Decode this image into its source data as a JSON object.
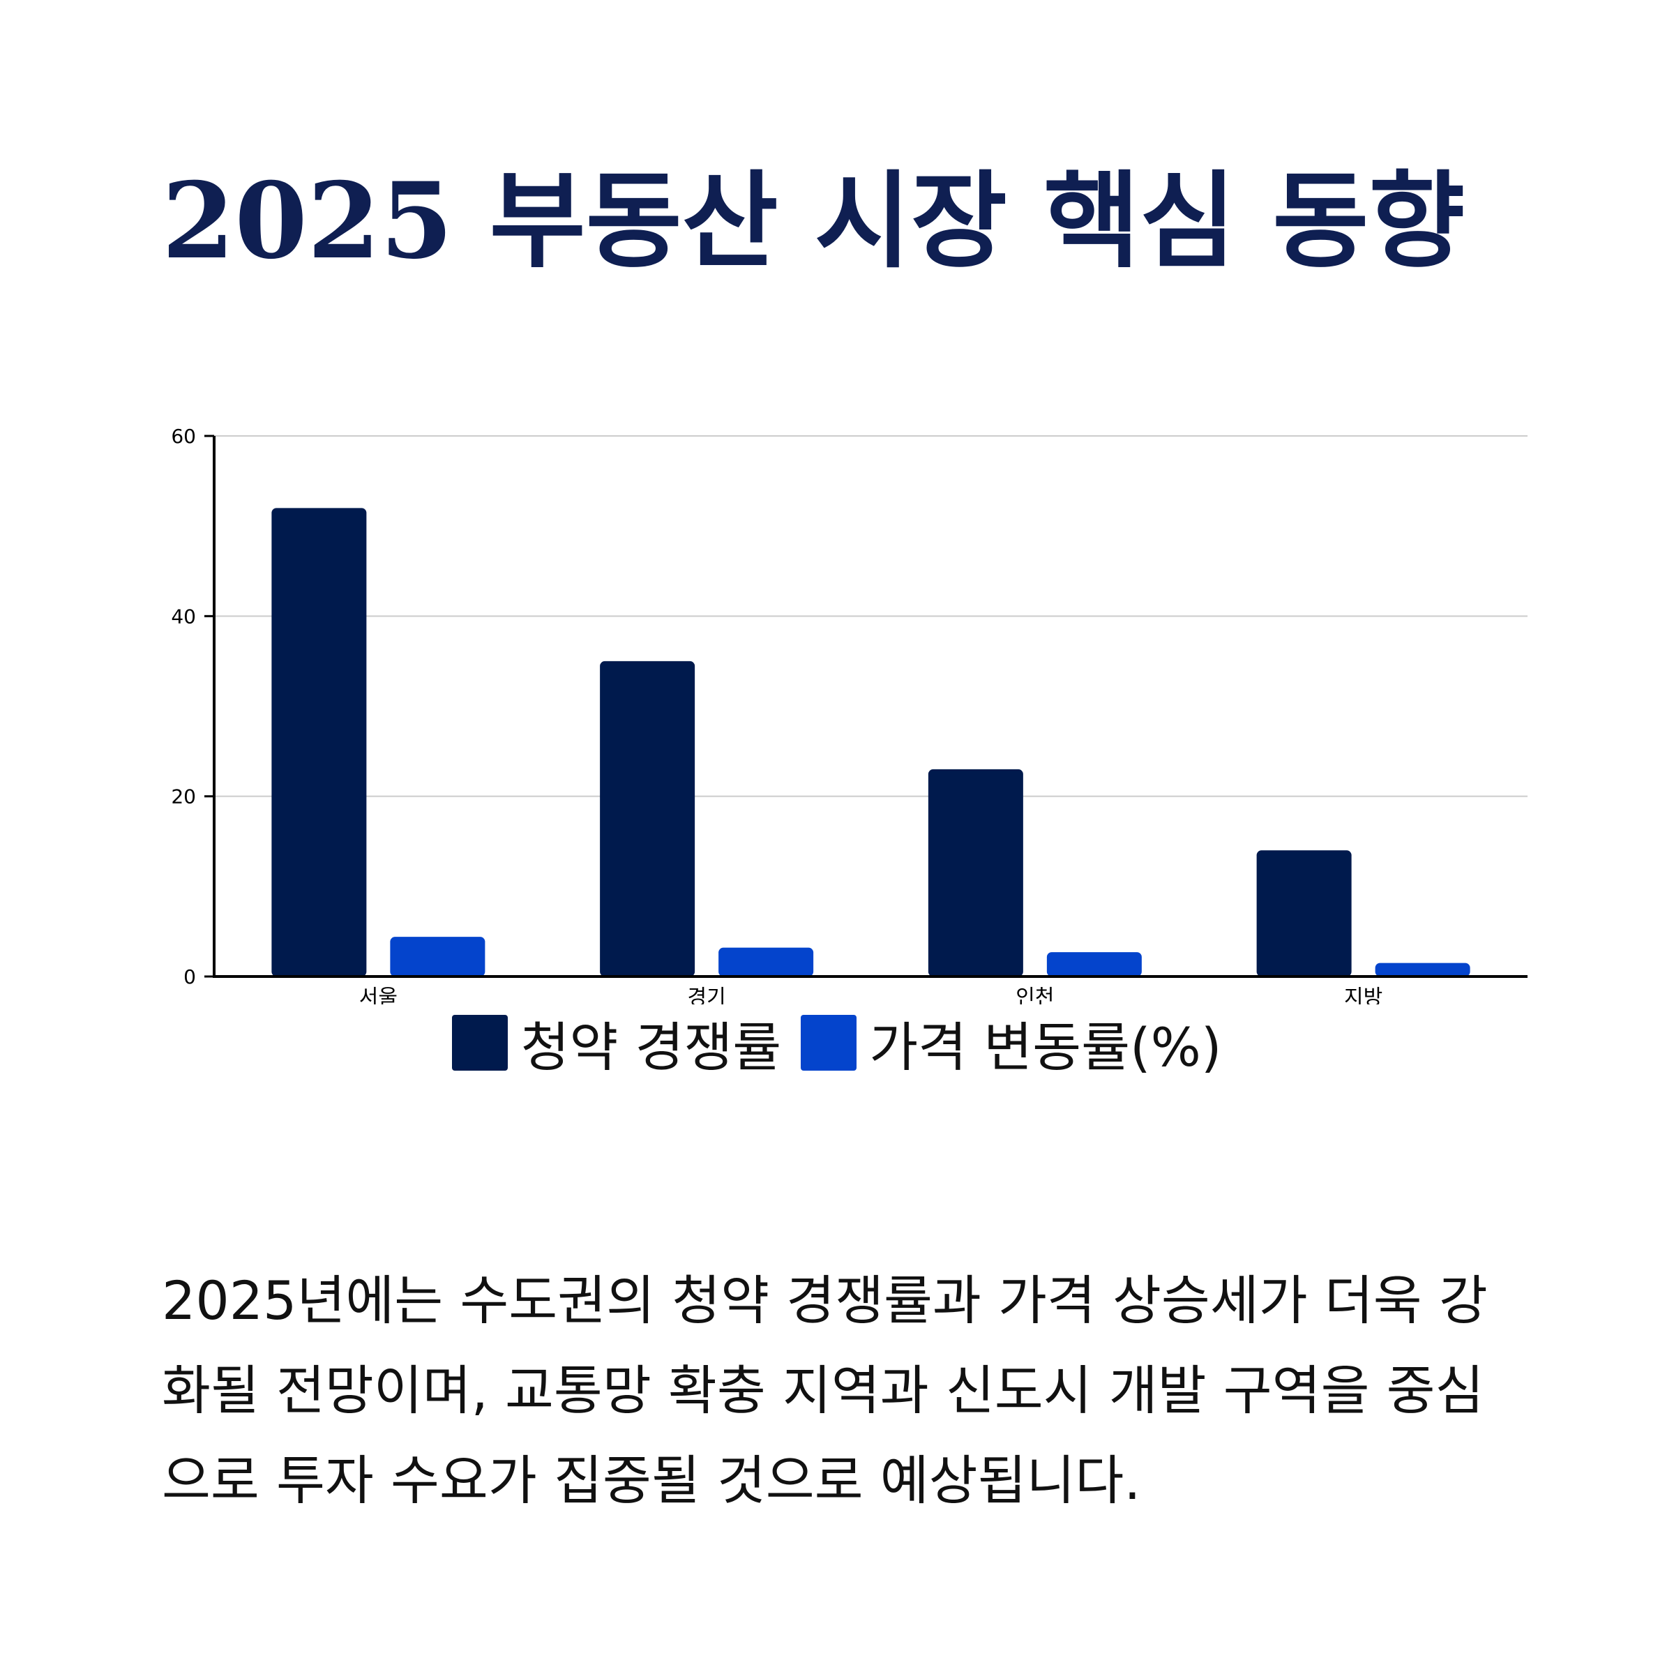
{
  "page": {
    "title": "2025 부동산 시장 핵심 동향",
    "description": "2025년에는 수도권의 청약 경쟁률과 가격 상승세가 더욱 강화될 전망이며, 교통망 확충 지역과 신도시 개발 구역을 중심으로 투자 수요가 집중될 것으로 예상됩니다."
  },
  "colors": {
    "title": "#0f1f52",
    "series1": "#001a4d",
    "series2": "#0444cc",
    "grid": "#cccccc"
  },
  "chart_data": {
    "type": "bar",
    "categories": [
      "서울",
      "경기",
      "인천",
      "지방"
    ],
    "series": [
      {
        "name": "청약 경쟁률",
        "values": [
          52,
          35,
          23,
          14
        ],
        "color": "#001a4d"
      },
      {
        "name": "가격 변동률(%)",
        "values": [
          4.4,
          3.2,
          2.7,
          1.5
        ],
        "color": "#0444cc"
      }
    ],
    "ylim": [
      0,
      60
    ],
    "yticks": [
      0,
      20,
      40,
      60
    ],
    "grid": true,
    "legend": "bottom-center",
    "title": "",
    "xlabel": "",
    "ylabel": ""
  }
}
